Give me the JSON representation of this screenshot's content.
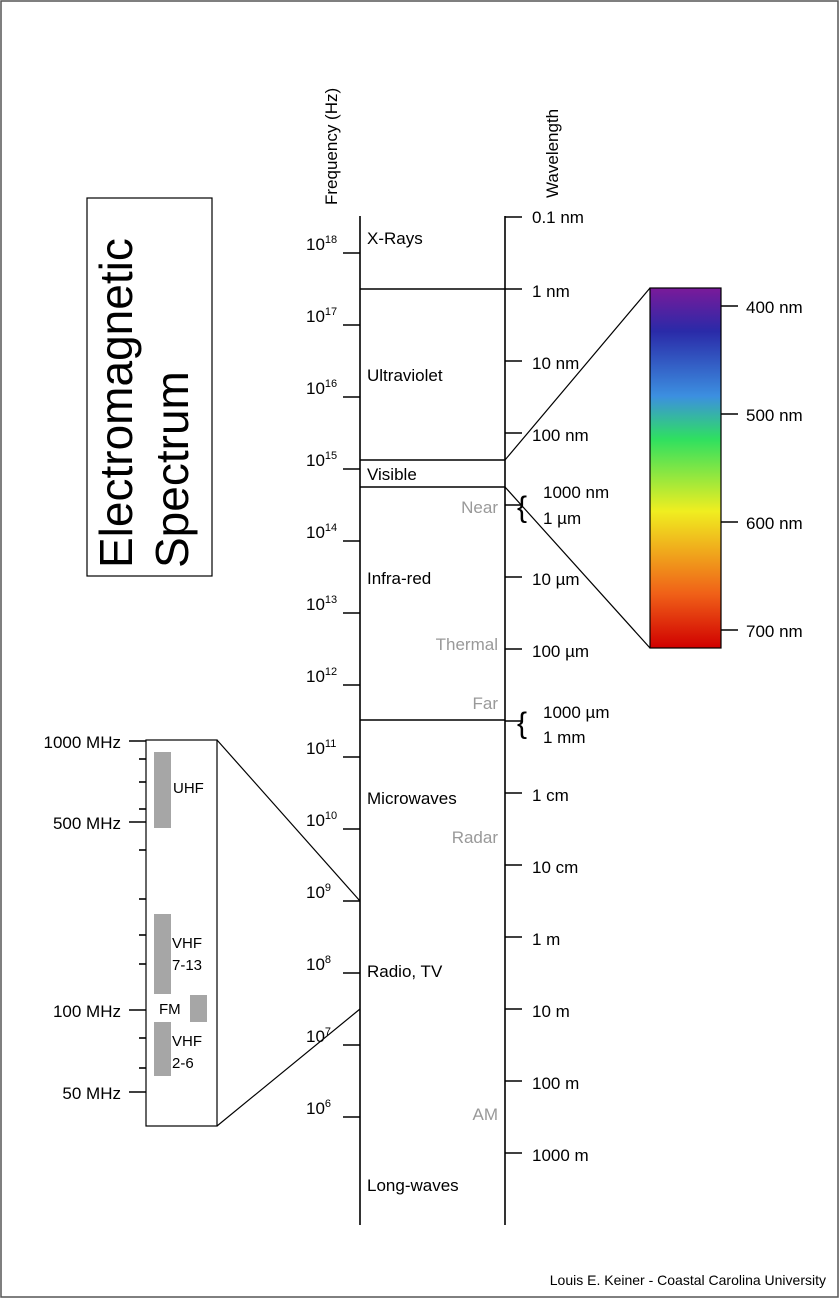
{
  "title": [
    "Electromagnetic",
    "Spectrum"
  ],
  "axes": {
    "frequency": "Frequency (Hz)",
    "wavelength": "Wavelength"
  },
  "frequency_ticks": [
    {
      "base": "10",
      "exp": "18"
    },
    {
      "base": "10",
      "exp": "17"
    },
    {
      "base": "10",
      "exp": "16"
    },
    {
      "base": "10",
      "exp": "15"
    },
    {
      "base": "10",
      "exp": "14"
    },
    {
      "base": "10",
      "exp": "13"
    },
    {
      "base": "10",
      "exp": "12"
    },
    {
      "base": "10",
      "exp": "11"
    },
    {
      "base": "10",
      "exp": "10"
    },
    {
      "base": "10",
      "exp": "9"
    },
    {
      "base": "10",
      "exp": "8"
    },
    {
      "base": "10",
      "exp": "7"
    },
    {
      "base": "10",
      "exp": "6"
    }
  ],
  "wavelength_ticks": [
    "0.1 nm",
    "1 nm",
    "10 nm",
    "100 nm",
    "10 µm",
    "100 µm",
    "1 cm",
    "10 cm",
    "1 m",
    "10 m",
    "100 m",
    "1000 m"
  ],
  "wavelength_pairs": [
    {
      "a": "1000 nm",
      "b": "1 µm"
    },
    {
      "a": "1000 µm",
      "b": "1 mm"
    }
  ],
  "bands": [
    "X-Rays",
    "Ultraviolet",
    "Visible",
    "Infra-red",
    "Microwaves",
    "Radio, TV",
    "Long-waves"
  ],
  "subbands": [
    "Near",
    "Thermal",
    "Far",
    "Radar",
    "AM"
  ],
  "visible_inset": {
    "labels": [
      "400 nm",
      "500 nm",
      "600 nm",
      "700 nm"
    ],
    "colors": [
      "#7a1a9a",
      "#2a2aa8",
      "#3c8fe0",
      "#2fe060",
      "#f0ee20",
      "#f06018",
      "#d00000"
    ]
  },
  "radio_inset": {
    "labels": [
      "1000 MHz",
      "500 MHz",
      "100 MHz",
      "50 MHz"
    ],
    "bands": [
      "UHF",
      "VHF",
      "7-13",
      "FM",
      "VHF",
      "2-6"
    ],
    "bar_color": "#a6a6a6"
  },
  "credit": "Louis E. Keiner - Coastal Carolina University"
}
